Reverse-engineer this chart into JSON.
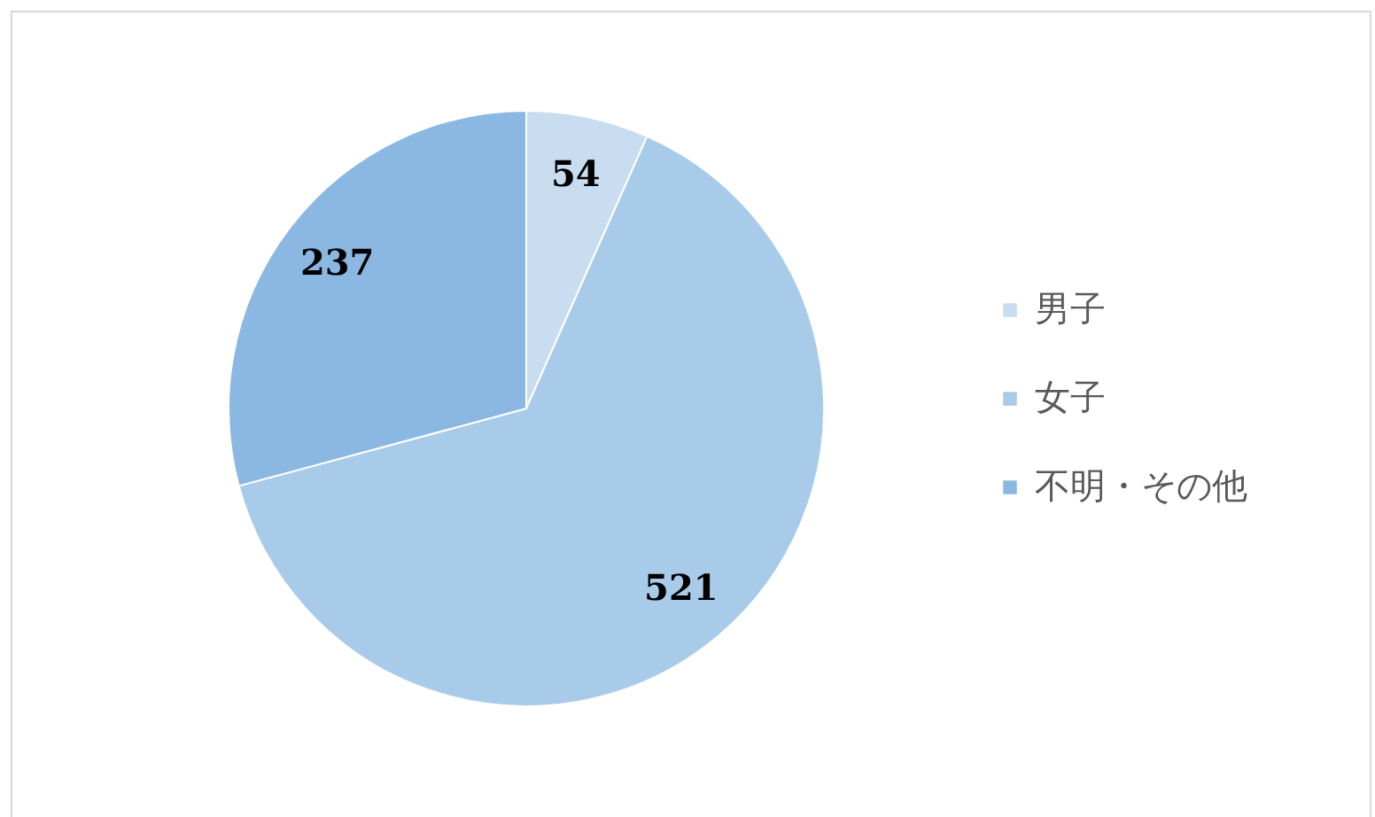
{
  "chart_data": {
    "type": "pie",
    "categories": [
      "男子",
      "女子",
      "不明・その他"
    ],
    "values": [
      54,
      521,
      237
    ],
    "colors": [
      "#c9ddf1",
      "#a9cbea",
      "#8bb8e2"
    ],
    "data_labels": true,
    "legend": "right"
  }
}
